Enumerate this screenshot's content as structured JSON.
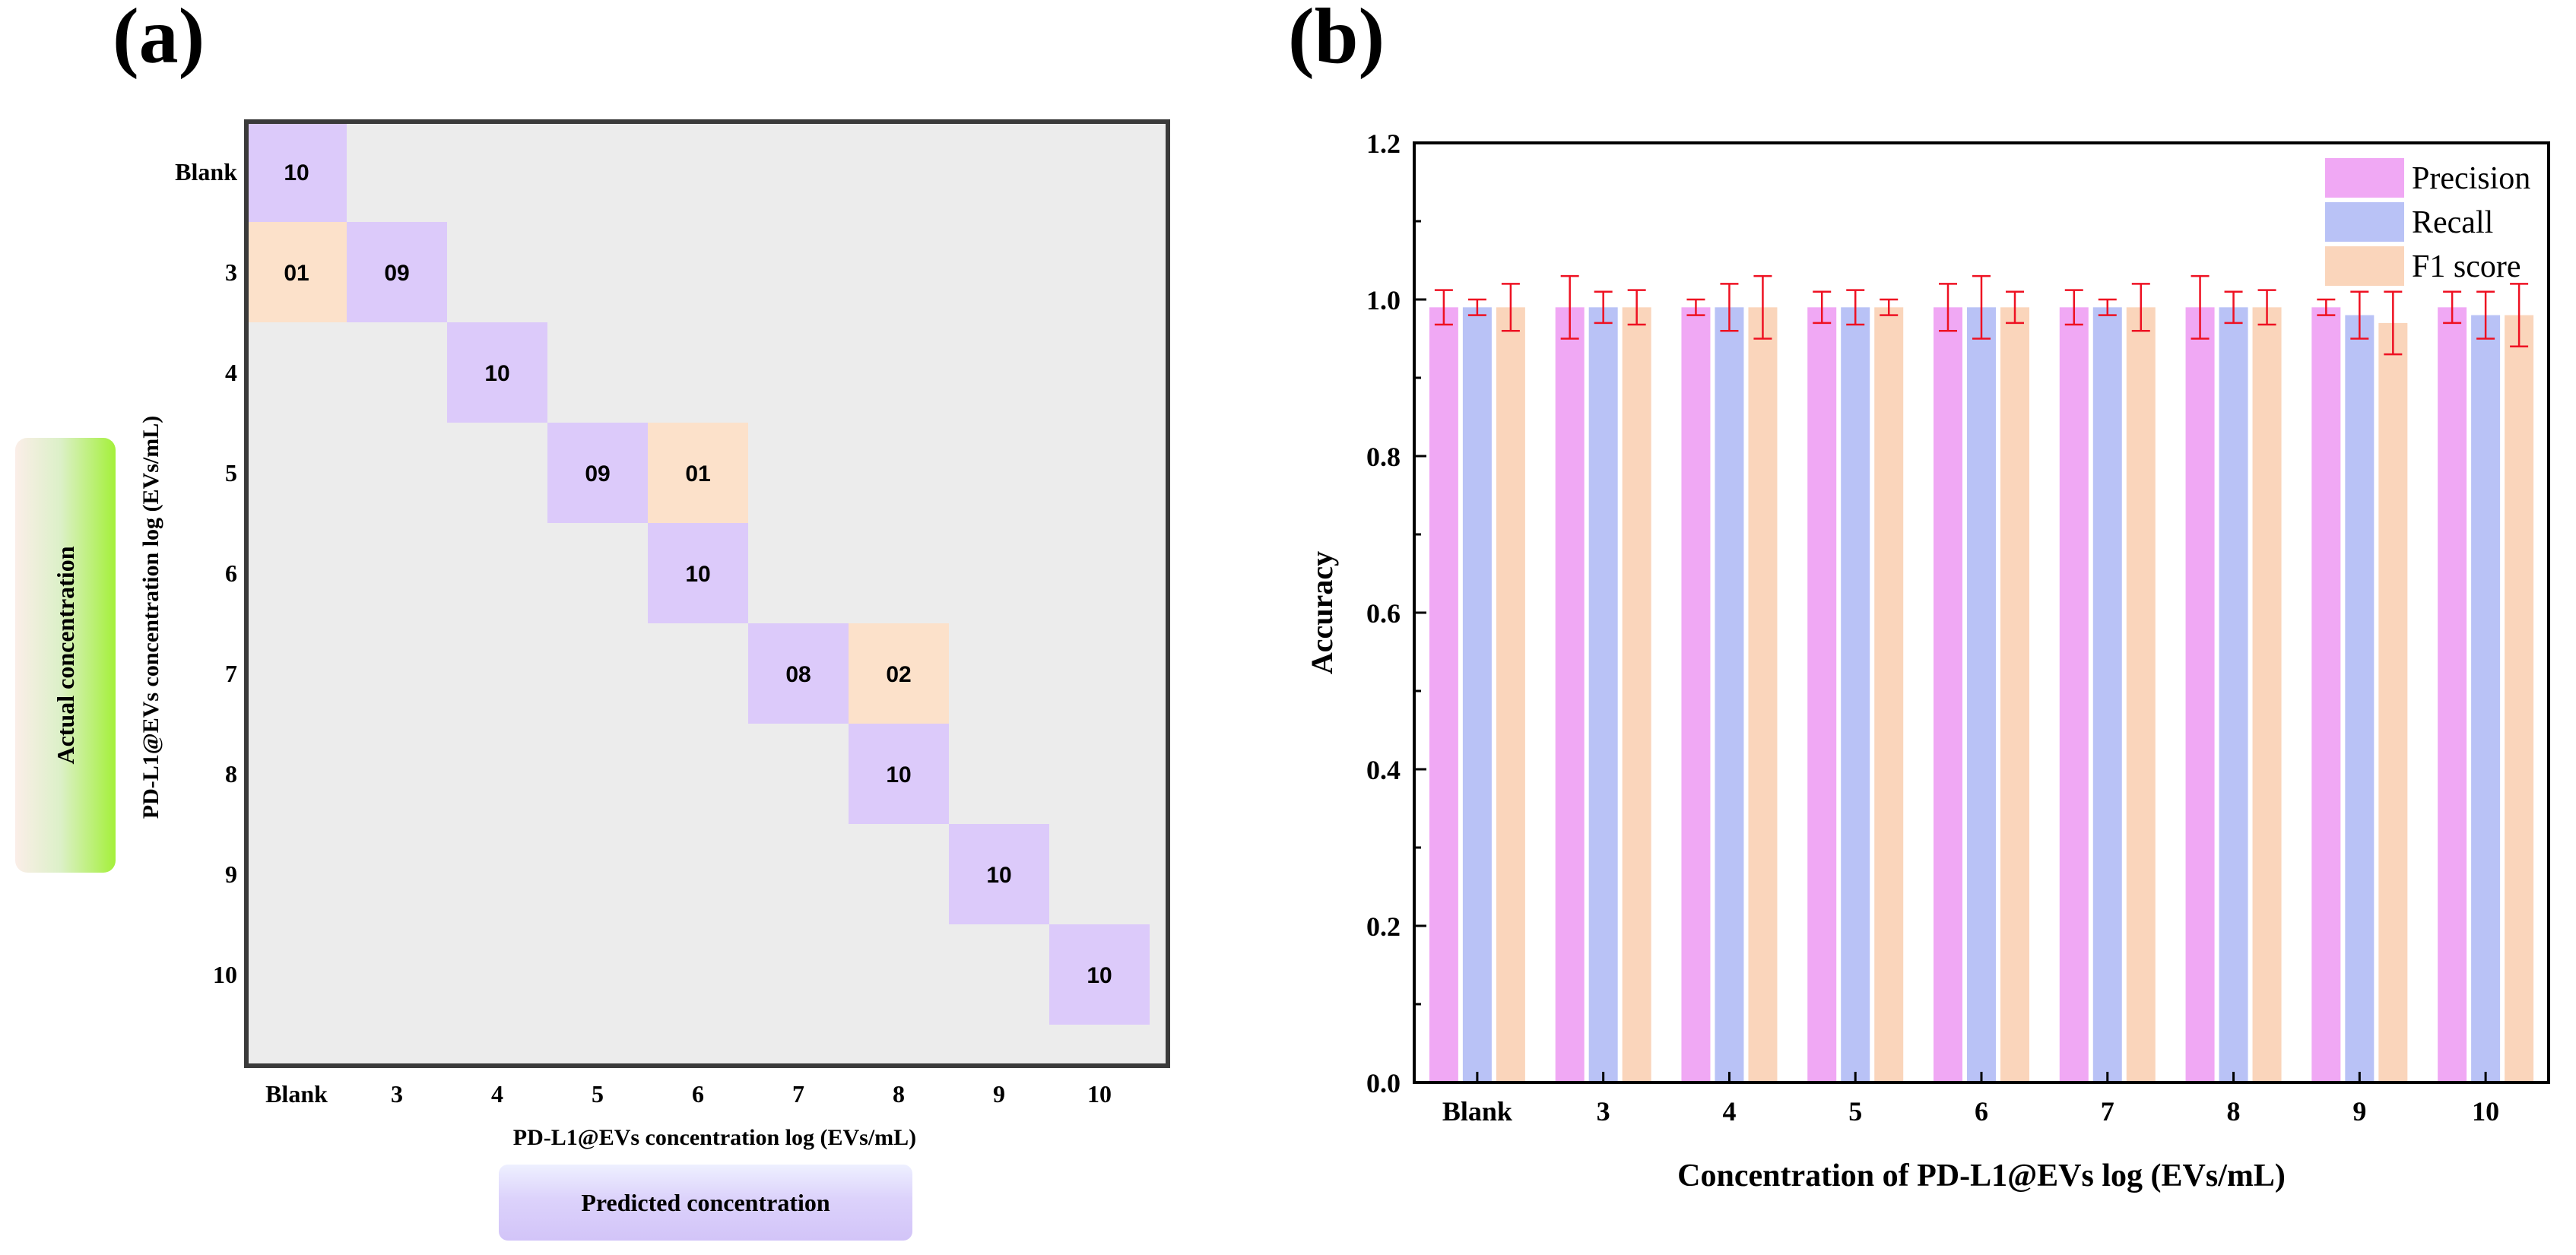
{
  "panel_a": {
    "label": "(a)",
    "actual_label": "Actual concentration",
    "predicted_label": "Predicted concentration"
  },
  "panel_b": {
    "label": "(b)"
  },
  "colors": {
    "correct": "#dccafa",
    "misclass": "#fce1ca",
    "background": "#ececec",
    "precision": "#f0a8f4",
    "recall": "#b9c2f6",
    "f1": "#fad5bb",
    "errorbar": "#ee1122"
  },
  "chart_data": [
    {
      "type": "heatmap",
      "title": "",
      "xlabel": "PD-L1@EVs concentration log (EVs/mL)",
      "ylabel": "PD-L1@EVs concentration log (EVs/mL)",
      "categories": [
        "Blank",
        "3",
        "4",
        "5",
        "6",
        "7",
        "8",
        "9",
        "10"
      ],
      "cells": [
        {
          "row": 0,
          "col": 0,
          "value": "10",
          "correct": true
        },
        {
          "row": 1,
          "col": 0,
          "value": "01",
          "correct": false
        },
        {
          "row": 1,
          "col": 1,
          "value": "09",
          "correct": true
        },
        {
          "row": 2,
          "col": 2,
          "value": "10",
          "correct": true
        },
        {
          "row": 3,
          "col": 3,
          "value": "09",
          "correct": true
        },
        {
          "row": 3,
          "col": 4,
          "value": "01",
          "correct": false
        },
        {
          "row": 4,
          "col": 4,
          "value": "10",
          "correct": true
        },
        {
          "row": 5,
          "col": 5,
          "value": "08",
          "correct": true
        },
        {
          "row": 5,
          "col": 6,
          "value": "02",
          "correct": false
        },
        {
          "row": 6,
          "col": 6,
          "value": "10",
          "correct": true
        },
        {
          "row": 7,
          "col": 7,
          "value": "10",
          "correct": true
        },
        {
          "row": 8,
          "col": 8,
          "value": "10",
          "correct": true
        }
      ]
    },
    {
      "type": "bar",
      "title": "",
      "xlabel": "Concentration of PD-L1@EVs log (EVs/mL)",
      "ylabel": "Accuracy",
      "ylim": [
        0.0,
        1.2
      ],
      "yticks": [
        "0.0",
        "0.2",
        "0.4",
        "0.6",
        "0.8",
        "1.0",
        "1.2"
      ],
      "legend_position": "top-right",
      "categories": [
        "Blank",
        "3",
        "4",
        "5",
        "6",
        "7",
        "8",
        "9",
        "10"
      ],
      "series": [
        {
          "name": "Precision",
          "values": [
            0.99,
            0.99,
            0.99,
            0.99,
            0.99,
            0.99,
            0.99,
            0.99,
            0.99
          ],
          "errors": [
            0.022,
            0.04,
            0.01,
            0.02,
            0.03,
            0.022,
            0.04,
            0.01,
            0.02
          ]
        },
        {
          "name": "Recall",
          "values": [
            0.99,
            0.99,
            0.99,
            0.99,
            0.99,
            0.99,
            0.99,
            0.98,
            0.98
          ],
          "errors": [
            0.01,
            0.02,
            0.03,
            0.022,
            0.04,
            0.01,
            0.02,
            0.03,
            0.03
          ]
        },
        {
          "name": "F1 score",
          "values": [
            0.99,
            0.99,
            0.99,
            0.99,
            0.99,
            0.99,
            0.99,
            0.97,
            0.98
          ],
          "errors": [
            0.03,
            0.022,
            0.04,
            0.01,
            0.02,
            0.03,
            0.022,
            0.04,
            0.04
          ]
        }
      ]
    }
  ]
}
